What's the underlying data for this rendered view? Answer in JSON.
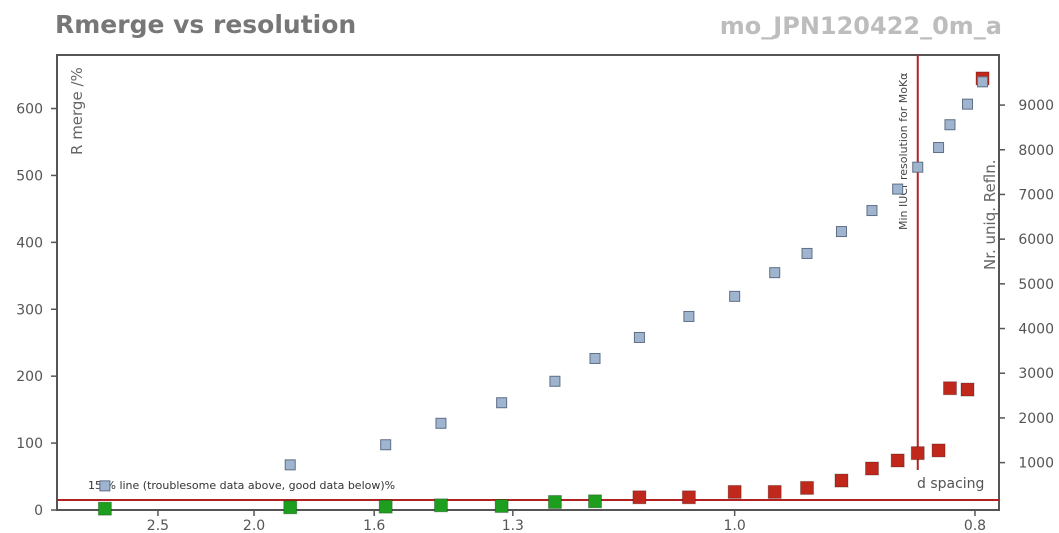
{
  "header": {
    "title": "Rmerge vs resolution",
    "subtitle": "mo_JPN120422_0m_a"
  },
  "chart_data": {
    "type": "scatter",
    "title": "Rmerge vs resolution",
    "subtitle": "mo_JPN120422_0m_a",
    "xlabel": "d spacing",
    "ylabel_left": "R merge /%",
    "ylabel_right": "Nr. uniq. Refln.",
    "x_scale": "reciprocal",
    "x_ticks": [
      2.5,
      2.0,
      1.6,
      1.3,
      1.0,
      0.8
    ],
    "x_tick_labels": [
      "2.5",
      "2.0",
      "1.6",
      "1.3",
      "1.0",
      "0.8"
    ],
    "y_left_ticks": [
      0,
      100,
      200,
      300,
      400,
      500,
      600
    ],
    "y_left_tick_labels": [
      "0",
      "100",
      "200",
      "300",
      "400",
      "500",
      "600"
    ],
    "y_left_lim": [
      0,
      680
    ],
    "y_right_ticks": [
      1000,
      2000,
      3000,
      4000,
      5000,
      6000,
      7000,
      8000,
      9000
    ],
    "y_right_tick_labels": [
      "1000",
      "2000",
      "3000",
      "4000",
      "5000",
      "6000",
      "7000",
      "8000",
      "9000"
    ],
    "y_right_lim": [
      -60,
      10120
    ],
    "x_lim_inverse": [
      0.295,
      1.275
    ],
    "series": [
      {
        "role": "rmerge",
        "axis": "left",
        "points": [
          {
            "d": 2.9,
            "v": 2,
            "color": "#1e9e1e"
          },
          {
            "d": 1.86,
            "v": 4,
            "color": "#1e9e1e"
          },
          {
            "d": 1.57,
            "v": 5,
            "color": "#1e9e1e"
          },
          {
            "d": 1.44,
            "v": 7,
            "color": "#1e9e1e"
          },
          {
            "d": 1.32,
            "v": 6,
            "color": "#1e9e1e"
          },
          {
            "d": 1.23,
            "v": 12,
            "color": "#1e9e1e"
          },
          {
            "d": 1.17,
            "v": 13,
            "color": "#1e9e1e"
          },
          {
            "d": 1.11,
            "v": 19,
            "color": "#c0281c"
          },
          {
            "d": 1.05,
            "v": 19,
            "color": "#c0281c"
          },
          {
            "d": 1.0,
            "v": 27,
            "color": "#c0281c"
          },
          {
            "d": 0.96,
            "v": 27,
            "color": "#c0281c"
          },
          {
            "d": 0.93,
            "v": 33,
            "color": "#c0281c"
          },
          {
            "d": 0.9,
            "v": 44,
            "color": "#c0281c"
          },
          {
            "d": 0.875,
            "v": 62,
            "color": "#c0281c"
          },
          {
            "d": 0.855,
            "v": 74,
            "color": "#c0281c"
          },
          {
            "d": 0.84,
            "v": 85,
            "color": "#c0281c"
          },
          {
            "d": 0.825,
            "v": 89,
            "color": "#c0281c"
          },
          {
            "d": 0.817,
            "v": 182,
            "color": "#c0281c"
          },
          {
            "d": 0.805,
            "v": 180,
            "color": "#c0281c"
          },
          {
            "d": 0.795,
            "v": 645,
            "color": "#c0281c"
          }
        ]
      },
      {
        "role": "unique_reflections",
        "axis": "right",
        "color": "#9fb4cf",
        "points": [
          {
            "d": 2.9,
            "v": 480
          },
          {
            "d": 1.86,
            "v": 950
          },
          {
            "d": 1.57,
            "v": 1400
          },
          {
            "d": 1.44,
            "v": 1880
          },
          {
            "d": 1.32,
            "v": 2340
          },
          {
            "d": 1.23,
            "v": 2820
          },
          {
            "d": 1.17,
            "v": 3330
          },
          {
            "d": 1.11,
            "v": 3800
          },
          {
            "d": 1.05,
            "v": 4270
          },
          {
            "d": 1.0,
            "v": 4720
          },
          {
            "d": 0.96,
            "v": 5250
          },
          {
            "d": 0.93,
            "v": 5680
          },
          {
            "d": 0.9,
            "v": 6170
          },
          {
            "d": 0.875,
            "v": 6640
          },
          {
            "d": 0.855,
            "v": 7120
          },
          {
            "d": 0.84,
            "v": 7610
          },
          {
            "d": 0.825,
            "v": 8050
          },
          {
            "d": 0.817,
            "v": 8560
          },
          {
            "d": 0.805,
            "v": 9020
          },
          {
            "d": 0.795,
            "v": 9520
          }
        ]
      }
    ],
    "reference_lines": [
      {
        "orientation": "horizontal",
        "axis": "left",
        "value": 15,
        "label": "15 % line (troublesome data above, good data below)%",
        "color": "#b22222"
      },
      {
        "orientation": "vertical",
        "d": 0.84,
        "label": "Min IUCr resolution for MoKα",
        "color": "#b22222"
      }
    ],
    "grid": false
  }
}
